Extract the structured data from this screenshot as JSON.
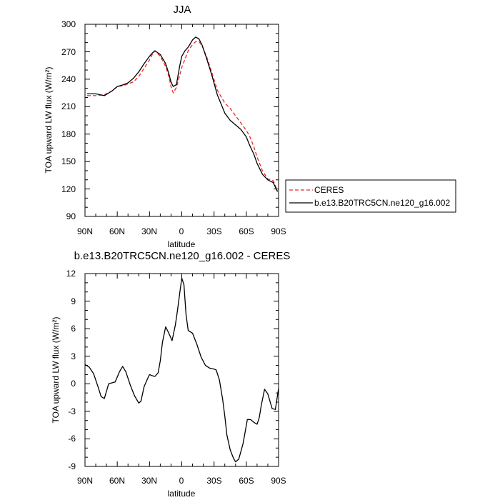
{
  "chart_data": [
    {
      "type": "line",
      "title": "JJA",
      "xlabel": "latitude",
      "ylabel": "TOA upward LW flux (W/m²)",
      "xlim": [
        90,
        -90
      ],
      "ylim": [
        90,
        300
      ],
      "xtick_labels": [
        "90N",
        "60N",
        "30N",
        "0",
        "30S",
        "60S",
        "90S"
      ],
      "ytick_labels": [
        "90",
        "120",
        "150",
        "180",
        "210",
        "240",
        "270",
        "300"
      ],
      "legend": [
        "CERES",
        "b.e13.B20TRC5CN.ne120_g16.002"
      ],
      "series": [
        {
          "name": "CERES",
          "color": "#e8262a",
          "dash": "dashed",
          "x": [
            88,
            80,
            72,
            65,
            60,
            54,
            50,
            45,
            40,
            35,
            30,
            27,
            25,
            20,
            15,
            12,
            10,
            8,
            5,
            2,
            0,
            -3,
            -6,
            -10,
            -13,
            -16,
            -19,
            -23,
            -28,
            -33,
            -40,
            -45,
            -50,
            -55,
            -60,
            -63,
            -67,
            -70,
            -75,
            -80,
            -85,
            -89
          ],
          "y": [
            222,
            222,
            223,
            227,
            232,
            233,
            235,
            237,
            243,
            252,
            261,
            268,
            271,
            265,
            254,
            243,
            232,
            225,
            231,
            244,
            253,
            262,
            271,
            278,
            281,
            281,
            276,
            265,
            247,
            228,
            214,
            208,
            200,
            192,
            184,
            178,
            166,
            155,
            140,
            131,
            129,
            118
          ]
        },
        {
          "name": "b.e13.B20TRC5CN.ne120_g16.002",
          "color": "#000000",
          "dash": "solid",
          "x": [
            88,
            80,
            72,
            65,
            60,
            54,
            50,
            45,
            40,
            35,
            30,
            27,
            25,
            20,
            15,
            12,
            10,
            8,
            5,
            2,
            0,
            -3,
            -6,
            -10,
            -13,
            -16,
            -19,
            -23,
            -28,
            -33,
            -40,
            -45,
            -50,
            -55,
            -60,
            -63,
            -67,
            -70,
            -75,
            -80,
            -85,
            -89
          ],
          "y": [
            224,
            224,
            222,
            227,
            232,
            234,
            236,
            241,
            248,
            257,
            265,
            269,
            271,
            267,
            257,
            246,
            237,
            232,
            234,
            254,
            265,
            271,
            275,
            283,
            286,
            284,
            277,
            263,
            244,
            223,
            203,
            195,
            190,
            185,
            177,
            168,
            158,
            148,
            136,
            130,
            127,
            117
          ]
        }
      ]
    },
    {
      "type": "line",
      "title": "b.e13.B20TRC5CN.ne120_g16.002 - CERES",
      "xlabel": "latitude",
      "ylabel": "TOA upward LW flux (W/m²)",
      "xlim": [
        90,
        -90
      ],
      "ylim": [
        -9,
        12
      ],
      "xtick_labels": [
        "90N",
        "60N",
        "30N",
        "0",
        "30S",
        "60S",
        "90S"
      ],
      "ytick_labels": [
        "12",
        "9",
        "6",
        "3",
        "0",
        "-3",
        "-6",
        "-9"
      ],
      "series": [
        {
          "name": "b.e13.B20TRC5CN.ne120_g16.002 - CERES",
          "color": "#000000",
          "dash": "solid",
          "x": [
            90,
            86,
            82,
            78,
            75,
            72,
            68,
            62,
            58,
            55,
            52,
            48,
            44,
            40,
            38,
            35,
            32,
            30,
            28,
            25,
            22,
            20,
            18,
            15,
            12,
            9,
            6,
            4,
            2,
            0,
            -2,
            -4,
            -6,
            -10,
            -14,
            -18,
            -22,
            -26,
            -30,
            -32,
            -35,
            -38,
            -40,
            -42,
            -45,
            -48,
            -50,
            -53,
            -57,
            -61,
            -64,
            -67,
            -70,
            -72,
            -74,
            -77,
            -80,
            -84,
            -87,
            -90
          ],
          "y": [
            2.1,
            1.8,
            1.1,
            -0.3,
            -1.4,
            -1.6,
            0.0,
            0.2,
            1.3,
            1.9,
            1.3,
            -0.1,
            -1.3,
            -2.1,
            -1.9,
            -0.3,
            0.5,
            1.0,
            0.9,
            0.8,
            1.2,
            2.5,
            4.5,
            6.2,
            5.5,
            4.7,
            6.4,
            8.0,
            9.8,
            11.5,
            10.8,
            7.5,
            5.8,
            5.5,
            4.3,
            2.9,
            2.0,
            1.7,
            1.6,
            1.5,
            0.4,
            -1.7,
            -3.5,
            -5.6,
            -7.2,
            -8.1,
            -8.5,
            -8.2,
            -6.5,
            -3.9,
            -3.9,
            -4.2,
            -4.4,
            -3.7,
            -2.3,
            -0.6,
            -1.1,
            -2.7,
            -2.8,
            -0.5
          ]
        }
      ]
    }
  ]
}
